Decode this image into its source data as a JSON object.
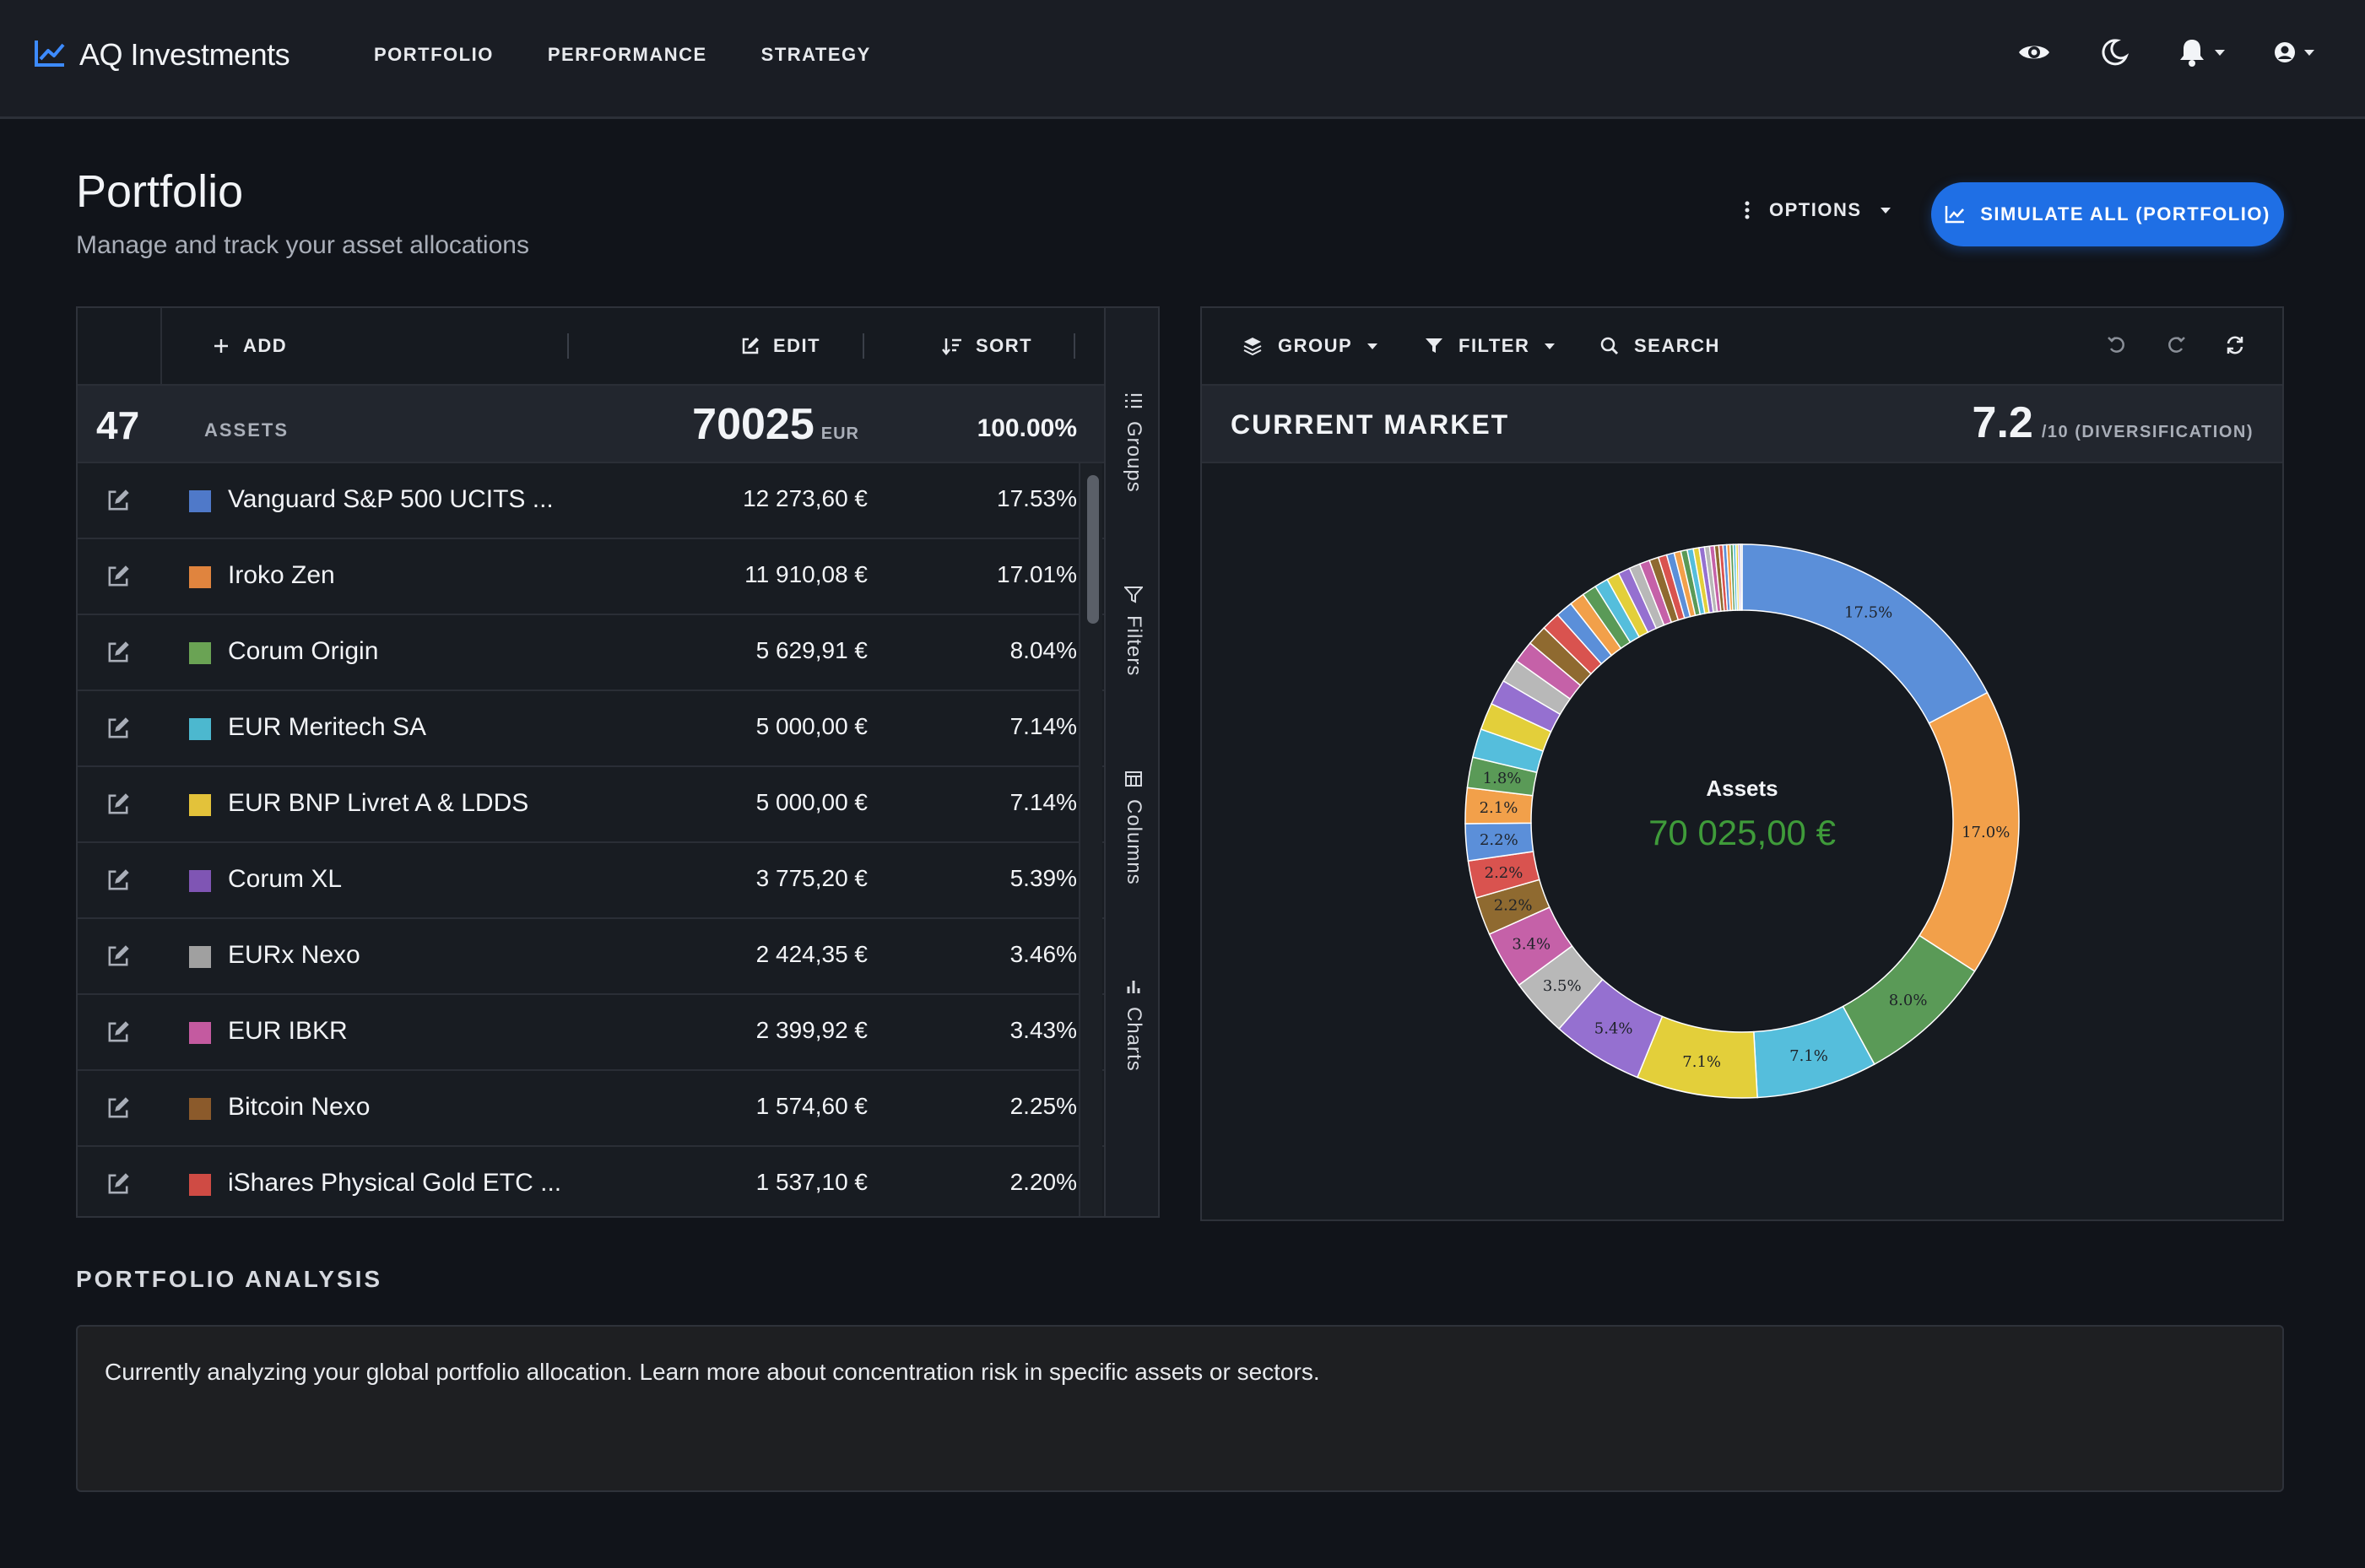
{
  "header": {
    "brand": "AQ Investments",
    "nav": [
      "PORTFOLIO",
      "PERFORMANCE",
      "STRATEGY"
    ],
    "icons": [
      "eye-icon",
      "moon-icon",
      "bell-icon",
      "user-icon"
    ]
  },
  "page": {
    "title": "Portfolio",
    "subtitle": "Manage and track your asset allocations",
    "options_label": "OPTIONS",
    "simulate_label": "SIMULATE ALL (PORTFOLIO)"
  },
  "table": {
    "toolbar": {
      "add": "ADD",
      "edit": "EDIT",
      "sort": "SORT"
    },
    "summary": {
      "count": "47",
      "label": "ASSETS",
      "total": "70025",
      "currency": "EUR",
      "percent": "100.00%"
    },
    "rows": [
      {
        "name": "Vanguard S&P 500 UCITS ...",
        "value": "12 273,60 €",
        "percent": "17.53%",
        "color": "#4f79c9"
      },
      {
        "name": "Iroko Zen",
        "value": "11 910,08 €",
        "percent": "17.01%",
        "color": "#e0843e"
      },
      {
        "name": "Corum Origin",
        "value": "5 629,91 €",
        "percent": "8.04%",
        "color": "#6aa354"
      },
      {
        "name": "EUR Meritech SA",
        "value": "5 000,00 €",
        "percent": "7.14%",
        "color": "#4cb8cf"
      },
      {
        "name": "EUR BNP Livret A & LDDS",
        "value": "5 000,00 €",
        "percent": "7.14%",
        "color": "#e3c23a"
      },
      {
        "name": "Corum XL",
        "value": "3 775,20 €",
        "percent": "5.39%",
        "color": "#7f55b4"
      },
      {
        "name": "EURx Nexo",
        "value": "2 424,35 €",
        "percent": "3.46%",
        "color": "#a0a0a0"
      },
      {
        "name": "EUR IBKR",
        "value": "2 399,92 €",
        "percent": "3.43%",
        "color": "#c45aa0"
      },
      {
        "name": "Bitcoin Nexo",
        "value": "1 574,60 €",
        "percent": "2.25%",
        "color": "#8b5a2b"
      },
      {
        "name": "iShares Physical Gold ETC ...",
        "value": "1 537,10 €",
        "percent": "2.20%",
        "color": "#cf4b44"
      }
    ],
    "side_tabs": [
      "Groups",
      "Filters",
      "Columns",
      "Charts"
    ]
  },
  "market": {
    "toolbar": {
      "group": "GROUP",
      "filter": "FILTER",
      "search": "SEARCH"
    },
    "title": "CURRENT MARKET",
    "score": "7.2",
    "score_label": "/10 (DIVERSIFICATION)",
    "center_label": "Assets",
    "center_value": "70 025,00 €"
  },
  "chart_data": {
    "type": "pie",
    "title": "Assets",
    "slices": [
      {
        "label": "17.5%",
        "value": 17.53,
        "color": "#5b8fd9"
      },
      {
        "label": "17.0%",
        "value": 17.01,
        "color": "#f2a04a"
      },
      {
        "label": "8.0%",
        "value": 8.04,
        "color": "#5a9a57"
      },
      {
        "label": "7.1%",
        "value": 7.14,
        "color": "#55bedc"
      },
      {
        "label": "7.1%",
        "value": 7.14,
        "color": "#e3cf3a"
      },
      {
        "label": "5.4%",
        "value": 5.39,
        "color": "#9570d0"
      },
      {
        "label": "3.5%",
        "value": 3.46,
        "color": "#b8b8b8"
      },
      {
        "label": "3.4%",
        "value": 3.43,
        "color": "#c561a8"
      },
      {
        "label": "2.2%",
        "value": 2.25,
        "color": "#8f6a30"
      },
      {
        "label": "2.2%",
        "value": 2.2,
        "color": "#d9534f"
      },
      {
        "label": "2.2%",
        "value": 2.18,
        "color": "#5b8fd9"
      },
      {
        "label": "2.1%",
        "value": 2.1,
        "color": "#f2a04a"
      },
      {
        "label": "1.8%",
        "value": 1.8,
        "color": "#5a9a57"
      },
      {
        "label": "",
        "value": 1.7,
        "color": "#55bedc"
      },
      {
        "label": "",
        "value": 1.6,
        "color": "#e3cf3a"
      },
      {
        "label": "",
        "value": 1.5,
        "color": "#9570d0"
      },
      {
        "label": "",
        "value": 1.4,
        "color": "#b8b8b8"
      },
      {
        "label": "",
        "value": 1.3,
        "color": "#c561a8"
      },
      {
        "label": "",
        "value": 1.2,
        "color": "#8f6a30"
      },
      {
        "label": "",
        "value": 1.1,
        "color": "#d9534f"
      },
      {
        "label": "",
        "value": 1.0,
        "color": "#5b8fd9"
      },
      {
        "label": "",
        "value": 0.9,
        "color": "#f2a04a"
      },
      {
        "label": "",
        "value": 0.85,
        "color": "#5a9a57"
      },
      {
        "label": "",
        "value": 0.8,
        "color": "#55bedc"
      },
      {
        "label": "",
        "value": 0.75,
        "color": "#e3cf3a"
      },
      {
        "label": "",
        "value": 0.7,
        "color": "#9570d0"
      },
      {
        "label": "",
        "value": 0.65,
        "color": "#b8b8b8"
      },
      {
        "label": "",
        "value": 0.6,
        "color": "#c561a8"
      },
      {
        "label": "",
        "value": 0.55,
        "color": "#8f6a30"
      },
      {
        "label": "",
        "value": 0.5,
        "color": "#d9534f"
      },
      {
        "label": "",
        "value": 0.45,
        "color": "#5b8fd9"
      },
      {
        "label": "",
        "value": 0.4,
        "color": "#f2a04a"
      },
      {
        "label": "",
        "value": 0.38,
        "color": "#5a9a57"
      },
      {
        "label": "",
        "value": 0.36,
        "color": "#55bedc"
      },
      {
        "label": "",
        "value": 0.34,
        "color": "#e3cf3a"
      },
      {
        "label": "",
        "value": 0.32,
        "color": "#9570d0"
      },
      {
        "label": "",
        "value": 0.3,
        "color": "#b8b8b8"
      },
      {
        "label": "",
        "value": 0.28,
        "color": "#c561a8"
      },
      {
        "label": "",
        "value": 0.26,
        "color": "#8f6a30"
      },
      {
        "label": "",
        "value": 0.24,
        "color": "#d9534f"
      },
      {
        "label": "",
        "value": 0.22,
        "color": "#5b8fd9"
      },
      {
        "label": "",
        "value": 0.2,
        "color": "#f2a04a"
      },
      {
        "label": "",
        "value": 0.18,
        "color": "#5a9a57"
      },
      {
        "label": "",
        "value": 0.16,
        "color": "#55bedc"
      },
      {
        "label": "",
        "value": 0.14,
        "color": "#e3cf3a"
      },
      {
        "label": "",
        "value": 0.12,
        "color": "#9570d0"
      },
      {
        "label": "",
        "value": 0.1,
        "color": "#b8b8b8"
      }
    ]
  },
  "analysis": {
    "title": "PORTFOLIO ANALYSIS",
    "text": "Currently analyzing your global portfolio allocation. Learn more about concentration risk in specific assets or sectors."
  }
}
